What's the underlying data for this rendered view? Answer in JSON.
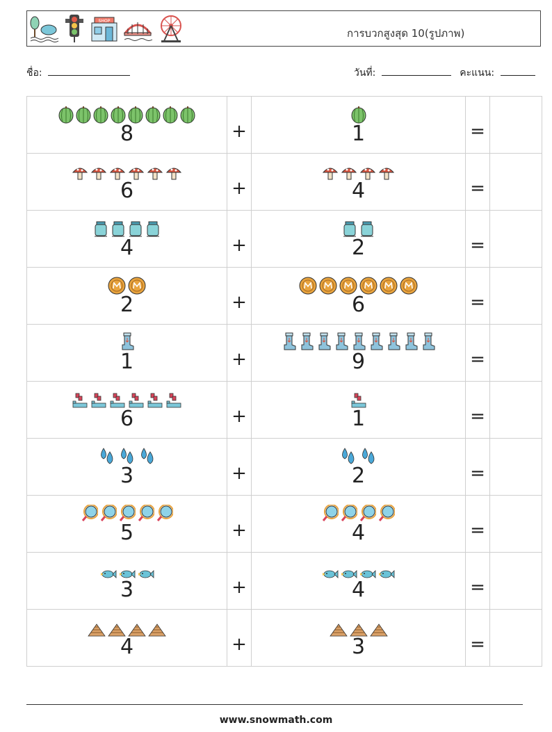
{
  "header": {
    "title": "การบวกสูงสุด 10(รูปภาพ)",
    "icons": [
      "trees-icon",
      "traffic-light-icon",
      "shop-icon",
      "bridge-icon",
      "ferris-wheel-icon"
    ]
  },
  "meta": {
    "name_label": "ชื่อ:",
    "date_label": "วันที่:",
    "score_label": "คะแนน:"
  },
  "operators": {
    "plus": "+",
    "equals": "="
  },
  "problems": [
    {
      "a": "8",
      "b": "1",
      "icon": "watermelon-icon"
    },
    {
      "a": "6",
      "b": "4",
      "icon": "mushroom-icon"
    },
    {
      "a": "4",
      "b": "2",
      "icon": "jar-icon"
    },
    {
      "a": "2",
      "b": "6",
      "icon": "coin-icon"
    },
    {
      "a": "1",
      "b": "9",
      "icon": "boot-icon"
    },
    {
      "a": "6",
      "b": "1",
      "icon": "blocks-icon"
    },
    {
      "a": "3",
      "b": "2",
      "icon": "water-drops-icon"
    },
    {
      "a": "5",
      "b": "4",
      "icon": "magnifier-icon"
    },
    {
      "a": "3",
      "b": "4",
      "icon": "fish-icon"
    },
    {
      "a": "4",
      "b": "3",
      "icon": "pyramid-icon"
    }
  ],
  "footer": {
    "website": "www.snowmath.com"
  }
}
